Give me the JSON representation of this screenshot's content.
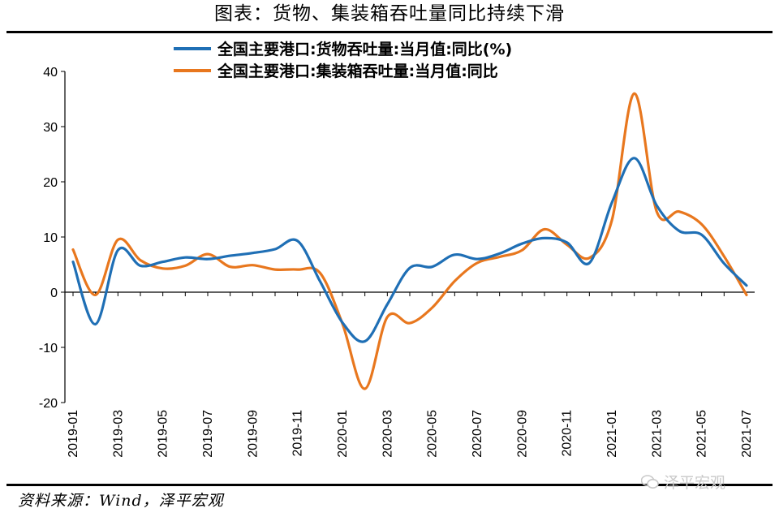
{
  "page": {
    "title": "图表：货物、集装箱吞吐量同比持续下滑",
    "source": "资料来源：Wind，泽平宏观",
    "watermark": "泽平宏观",
    "watermark_icon": "wechat-icon"
  },
  "chart_data": {
    "type": "line",
    "title": "图表：货物、集装箱吞吐量同比持续下滑",
    "xlabel": "",
    "ylabel": "",
    "ylim": [
      -20,
      40
    ],
    "yticks": [
      -20,
      -10,
      0,
      10,
      20,
      30,
      40
    ],
    "grid": false,
    "legend_position": "top",
    "x": [
      "2019-01",
      "2019-02",
      "2019-03",
      "2019-04",
      "2019-05",
      "2019-06",
      "2019-07",
      "2019-08",
      "2019-09",
      "2019-10",
      "2019-11",
      "2019-12",
      "2020-01",
      "2020-02",
      "2020-03",
      "2020-04",
      "2020-05",
      "2020-06",
      "2020-07",
      "2020-08",
      "2020-09",
      "2020-10",
      "2020-11",
      "2020-12",
      "2021-01",
      "2021-02",
      "2021-03",
      "2021-04",
      "2021-05",
      "2021-06",
      "2021-07"
    ],
    "xticks": [
      "2019-01",
      "2019-03",
      "2019-05",
      "2019-07",
      "2019-09",
      "2019-11",
      "2020-01",
      "2020-03",
      "2020-05",
      "2020-07",
      "2020-09",
      "2020-11",
      "2021-01",
      "2021-03",
      "2021-05",
      "2021-07"
    ],
    "series": [
      {
        "name": "全国主要港口:货物吞吐量:当月值:同比(%)",
        "color": "#1f6fb5",
        "values": [
          5.5,
          -5.8,
          7.6,
          4.8,
          5.5,
          6.3,
          6.0,
          6.6,
          7.1,
          7.8,
          9.3,
          2.0,
          -5.5,
          -8.9,
          -2.2,
          4.4,
          4.6,
          6.8,
          6.0,
          7.0,
          8.8,
          9.8,
          9.0,
          5.3,
          16.2,
          24.3,
          15.7,
          11.1,
          10.4,
          5.2,
          1.2
        ]
      },
      {
        "name": "全国主要港口:集装箱吞吐量:当月值:同比",
        "color": "#e8771e",
        "values": [
          7.7,
          -0.5,
          9.5,
          5.8,
          4.3,
          4.8,
          6.9,
          4.6,
          4.9,
          4.1,
          4.1,
          3.5,
          -5.7,
          -17.5,
          -4.5,
          -5.6,
          -2.8,
          2.0,
          5.3,
          6.4,
          7.6,
          11.4,
          8.6,
          6.2,
          13.0,
          36.0,
          14.6,
          14.6,
          12.3,
          6.5,
          -0.5
        ]
      }
    ]
  }
}
